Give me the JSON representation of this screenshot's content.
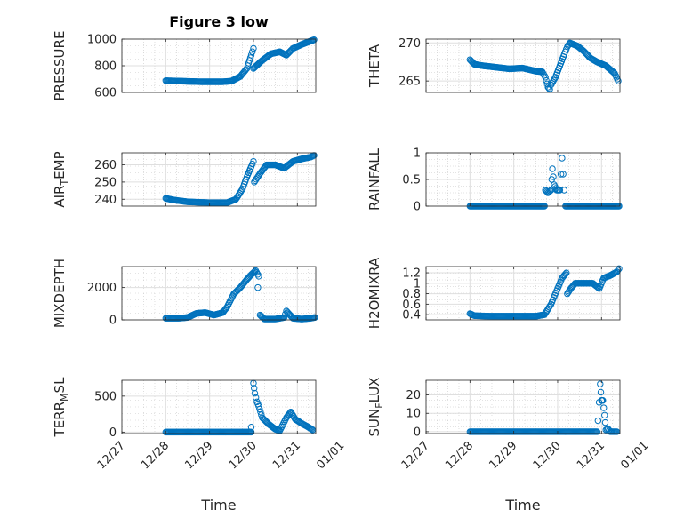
{
  "title": "Figure 3 low",
  "x_axis": {
    "label": "Time",
    "ticks": [
      "12/27",
      "12/28",
      "12/29",
      "12/30",
      "12/31",
      "01/01"
    ]
  },
  "colors": {
    "marker": "#0072BD",
    "axes": "#262626",
    "grid": "#dfdfdf",
    "minor_grid": "#c8c8c8"
  },
  "chart_data": [
    {
      "type": "scatter",
      "name": "pressure",
      "ylabel": "PRESSURE",
      "ylim": [
        600,
        1000
      ],
      "yticks": [
        600,
        800,
        1000
      ],
      "ytick_labels": [
        "600",
        "800",
        "1000"
      ],
      "segments": [
        {
          "points": [
            [
              1.0,
              688
            ],
            [
              1.3,
              685
            ],
            [
              1.8,
              680
            ],
            [
              2.3,
              680
            ],
            [
              2.5,
              685
            ],
            [
              2.7,
              720
            ],
            [
              2.85,
              780
            ],
            [
              2.95,
              880
            ],
            [
              3.0,
              930
            ]
          ]
        },
        {
          "points": [
            [
              3.0,
              780
            ],
            [
              3.2,
              840
            ],
            [
              3.4,
              890
            ],
            [
              3.6,
              905
            ],
            [
              3.75,
              880
            ],
            [
              3.9,
              930
            ],
            [
              4.1,
              960
            ],
            [
              4.3,
              985
            ],
            [
              4.38,
              995
            ]
          ]
        }
      ]
    },
    {
      "type": "scatter",
      "name": "theta",
      "ylabel": "THETA",
      "ylim": [
        263.5,
        270.5
      ],
      "yticks": [
        265,
        270
      ],
      "ytick_labels": [
        "265",
        "270"
      ],
      "segments": [
        {
          "points": [
            [
              1.0,
              267.8
            ],
            [
              1.1,
              267.2
            ],
            [
              1.3,
              267.0
            ],
            [
              1.6,
              266.8
            ],
            [
              1.9,
              266.6
            ],
            [
              2.2,
              266.7
            ],
            [
              2.5,
              266.3
            ],
            [
              2.65,
              266.2
            ],
            [
              2.72,
              265.5
            ],
            [
              2.78,
              264.2
            ],
            [
              2.82,
              263.9
            ]
          ]
        },
        {
          "points": [
            [
              2.85,
              264.5
            ],
            [
              2.95,
              265.5
            ],
            [
              3.05,
              267.0
            ],
            [
              3.15,
              268.5
            ],
            [
              3.22,
              269.5
            ],
            [
              3.28,
              270.0
            ],
            [
              3.45,
              269.6
            ],
            [
              3.6,
              268.9
            ],
            [
              3.75,
              268.0
            ],
            [
              3.9,
              267.5
            ],
            [
              4.1,
              267.0
            ],
            [
              4.2,
              266.5
            ],
            [
              4.3,
              266.0
            ],
            [
              4.38,
              265.0
            ]
          ]
        }
      ]
    },
    {
      "type": "scatter",
      "name": "air_temp",
      "ylabel": "AIR_TEMP",
      "ylim": [
        236,
        267
      ],
      "yticks": [
        240,
        250,
        260
      ],
      "ytick_labels": [
        "240",
        "250",
        "260"
      ],
      "segments": [
        {
          "points": [
            [
              1.0,
              240.5
            ],
            [
              1.2,
              239.5
            ],
            [
              1.5,
              238.5
            ],
            [
              2.0,
              238.0
            ],
            [
              2.4,
              238.0
            ],
            [
              2.6,
              240
            ],
            [
              2.75,
              246
            ],
            [
              2.85,
              253
            ],
            [
              2.95,
              259
            ],
            [
              3.0,
              262
            ]
          ]
        },
        {
          "points": [
            [
              3.02,
              250
            ],
            [
              3.15,
              255
            ],
            [
              3.3,
              260
            ],
            [
              3.5,
              260
            ],
            [
              3.7,
              258
            ],
            [
              3.9,
              262
            ],
            [
              4.1,
              263.5
            ],
            [
              4.3,
              264.5
            ],
            [
              4.38,
              265.5
            ]
          ]
        }
      ]
    },
    {
      "type": "scatter",
      "name": "rainfall",
      "ylabel": "RAINFALL",
      "ylim": [
        0,
        1
      ],
      "yticks": [
        0,
        0.5,
        1
      ],
      "ytick_labels": [
        "0",
        "0.5",
        "1"
      ],
      "segments": [
        {
          "points": [
            [
              1.0,
              0
            ],
            [
              1.5,
              0
            ],
            [
              2.0,
              0
            ],
            [
              2.5,
              0
            ],
            [
              2.7,
              0
            ]
          ]
        },
        {
          "points": [
            [
              2.72,
              0.3
            ],
            [
              2.78,
              0.25
            ],
            [
              2.85,
              0.3
            ],
            [
              2.88,
              0.7
            ],
            [
              2.92,
              0.4
            ],
            [
              2.98,
              0.3
            ],
            [
              3.05,
              0.3
            ],
            [
              3.1,
              0.9
            ],
            [
              3.15,
              0.3
            ]
          ]
        },
        {
          "points": [
            [
              3.18,
              0
            ],
            [
              3.5,
              0
            ],
            [
              3.9,
              0
            ],
            [
              4.2,
              0
            ],
            [
              4.4,
              0
            ]
          ]
        }
      ]
    },
    {
      "type": "scatter",
      "name": "mixdepth",
      "ylabel": "MIXDEPTH",
      "ylim": [
        0,
        3300
      ],
      "yticks": [
        0,
        2000
      ],
      "ytick_labels": [
        "0",
        "2000"
      ],
      "segments": [
        {
          "points": [
            [
              1.0,
              100
            ],
            [
              1.3,
              100
            ],
            [
              1.5,
              150
            ],
            [
              1.7,
              400
            ],
            [
              1.9,
              450
            ],
            [
              2.1,
              300
            ],
            [
              2.3,
              450
            ],
            [
              2.4,
              800
            ],
            [
              2.55,
              1600
            ],
            [
              2.7,
              2000
            ],
            [
              2.85,
              2500
            ],
            [
              2.95,
              2800
            ],
            [
              3.05,
              3050
            ],
            [
              3.12,
              2700
            ]
          ]
        },
        {
          "points": [
            [
              3.1,
              2000
            ]
          ]
        },
        {
          "points": [
            [
              3.15,
              300
            ],
            [
              3.25,
              50
            ],
            [
              3.5,
              50
            ],
            [
              3.7,
              150
            ],
            [
              3.75,
              550
            ],
            [
              3.9,
              100
            ],
            [
              4.1,
              50
            ],
            [
              4.3,
              100
            ],
            [
              4.4,
              150
            ]
          ]
        }
      ]
    },
    {
      "type": "scatter",
      "name": "h2omixra",
      "ylabel": "H2OMIXRA",
      "ylim": [
        0.3,
        1.32
      ],
      "yticks": [
        0.4,
        0.6,
        0.8,
        1,
        1.2
      ],
      "ytick_labels": [
        "0.4",
        "0.6",
        "0.8",
        "1",
        "1.2"
      ],
      "segments": [
        {
          "points": [
            [
              1.0,
              0.42
            ],
            [
              1.1,
              0.38
            ],
            [
              1.5,
              0.37
            ],
            [
              2.0,
              0.37
            ],
            [
              2.5,
              0.37
            ],
            [
              2.7,
              0.4
            ],
            [
              2.85,
              0.6
            ],
            [
              3.0,
              0.9
            ],
            [
              3.1,
              1.1
            ],
            [
              3.2,
              1.2
            ]
          ]
        },
        {
          "points": [
            [
              3.22,
              0.8
            ],
            [
              3.3,
              0.9
            ],
            [
              3.4,
              1.0
            ],
            [
              3.6,
              1.0
            ],
            [
              3.8,
              1.0
            ],
            [
              3.95,
              0.9
            ],
            [
              4.05,
              1.1
            ],
            [
              4.2,
              1.15
            ],
            [
              4.35,
              1.22
            ],
            [
              4.4,
              1.28
            ]
          ]
        }
      ]
    },
    {
      "type": "scatter",
      "name": "terr_msl",
      "ylabel": "TERR_MSL",
      "ylim": [
        -20,
        720
      ],
      "yticks": [
        0,
        500
      ],
      "ytick_labels": [
        "0",
        "500"
      ],
      "segments": [
        {
          "points": [
            [
              1.0,
              0
            ],
            [
              1.5,
              0
            ],
            [
              2.0,
              0
            ],
            [
              2.5,
              0
            ],
            [
              2.95,
              0
            ]
          ]
        },
        {
          "points": [
            [
              2.95,
              70
            ]
          ]
        },
        {
          "points": [
            [
              3.0,
              680
            ],
            [
              3.03,
              540
            ],
            [
              3.08,
              420
            ],
            [
              3.12,
              360
            ],
            [
              3.2,
              200
            ],
            [
              3.35,
              110
            ],
            [
              3.5,
              40
            ],
            [
              3.6,
              20
            ],
            [
              3.75,
              200
            ],
            [
              3.85,
              280
            ],
            [
              3.95,
              180
            ],
            [
              4.1,
              120
            ],
            [
              4.25,
              70
            ],
            [
              4.35,
              30
            ]
          ]
        }
      ]
    },
    {
      "type": "scatter",
      "name": "sun_flux",
      "ylabel": "SUN_FLUX",
      "ylim": [
        -1,
        28
      ],
      "yticks": [
        0,
        10,
        20
      ],
      "ytick_labels": [
        "0",
        "10",
        "20"
      ],
      "segments": [
        {
          "points": [
            [
              1.0,
              0
            ],
            [
              1.5,
              0
            ],
            [
              2.0,
              0
            ],
            [
              2.5,
              0
            ],
            [
              3.0,
              0
            ],
            [
              3.5,
              0
            ],
            [
              3.9,
              0
            ]
          ]
        },
        {
          "points": [
            [
              3.92,
              6
            ],
            [
              3.97,
              26
            ],
            [
              4.0,
              17
            ],
            [
              4.03,
              17
            ],
            [
              4.07,
              9
            ],
            [
              4.1,
              1
            ],
            [
              4.15,
              1.5
            ],
            [
              4.2,
              0
            ],
            [
              4.35,
              0
            ]
          ]
        }
      ]
    }
  ],
  "ylabels": [
    {
      "main": "PRESSURE",
      "sub": ""
    },
    {
      "main": "THETA",
      "sub": ""
    },
    {
      "main": "AIR",
      "sub": "T",
      "tail": "EMP"
    },
    {
      "main": "RAINFALL",
      "sub": ""
    },
    {
      "main": "MIXDEPTH",
      "sub": ""
    },
    {
      "main": "H2OMIXRA",
      "sub": ""
    },
    {
      "main": "TERR",
      "sub": "M",
      "tail": "SL"
    },
    {
      "main": "SUN",
      "sub": "F",
      "tail": "LUX"
    }
  ]
}
